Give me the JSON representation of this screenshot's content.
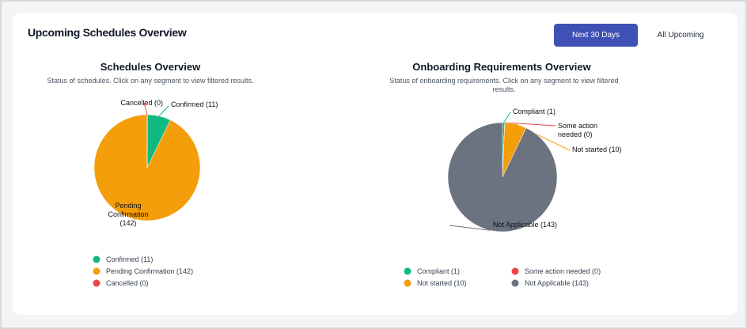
{
  "header": {
    "title": "Upcoming Schedules Overview",
    "buttons": [
      "Next 30 Days",
      "All Upcoming"
    ]
  },
  "chart_data": [
    {
      "type": "pie",
      "title": "Schedules Overview",
      "subtitle": "Status of schedules. Click on any segment to view filtered results.",
      "values": [
        11,
        142,
        0
      ],
      "value_labels": [
        "Confirmed (11)",
        "Pending Confirmation (142)",
        "Cancelled (0)"
      ],
      "colors": [
        "#10b981",
        "#f59e0b",
        "#ef4444"
      ]
    },
    {
      "type": "pie",
      "title": "Onboarding Requirements Overview",
      "subtitle": "Status of onboarding requirements. Click on any segment to view filtered results.",
      "values": [
        1,
        0,
        10,
        143
      ],
      "value_labels": [
        "Compliant (1)",
        "Some action needed (0)",
        "Not started (10)",
        "Not Applicable (143)"
      ],
      "colors": [
        "#10b981",
        "#ef4444",
        "#f59e0b",
        "#6b7280"
      ]
    }
  ]
}
